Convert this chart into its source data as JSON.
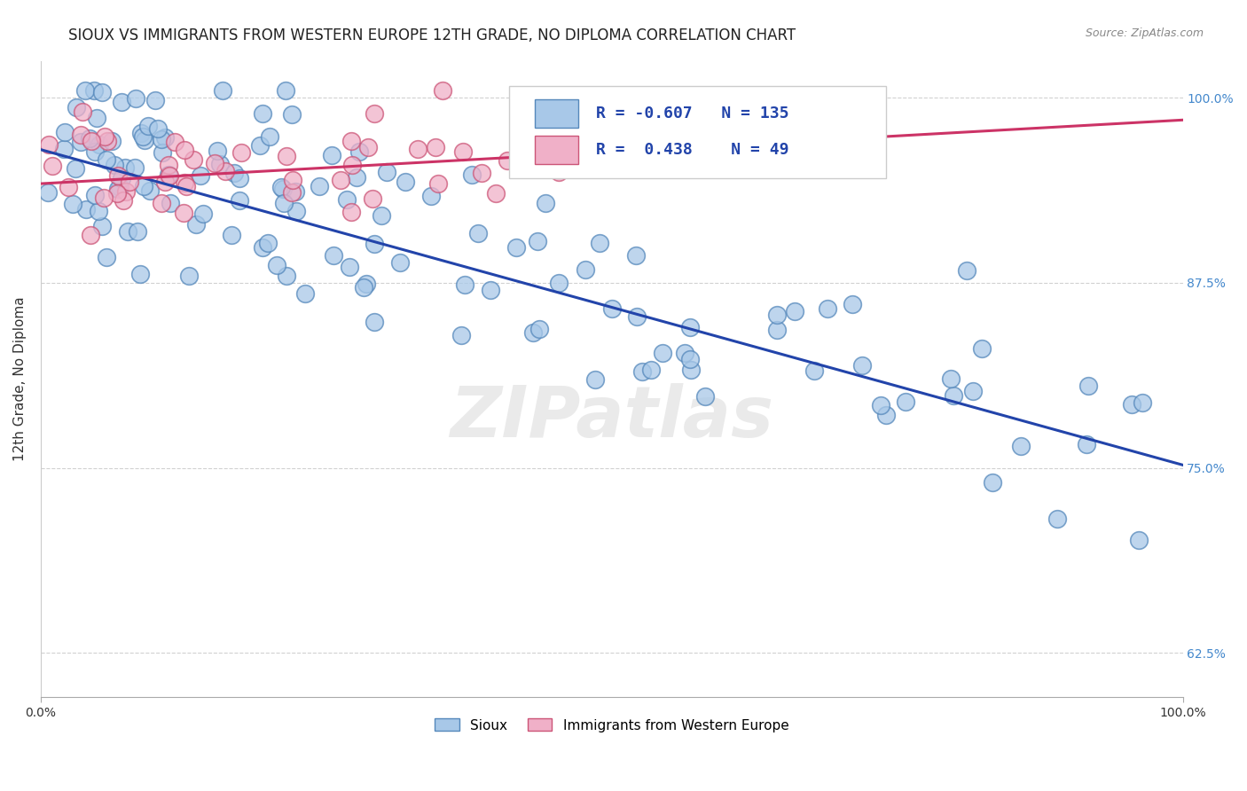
{
  "title": "SIOUX VS IMMIGRANTS FROM WESTERN EUROPE 12TH GRADE, NO DIPLOMA CORRELATION CHART",
  "source": "Source: ZipAtlas.com",
  "ylabel_label": "12th Grade, No Diploma",
  "watermark": "ZIPatlas",
  "legend_entries": [
    {
      "label": "Sioux",
      "color": "#a8c8e8",
      "edge_color": "#5588bb",
      "R": "-0.607",
      "N": "135",
      "line_color": "#2244aa"
    },
    {
      "label": "Immigrants from Western Europe",
      "color": "#f0b0c8",
      "edge_color": "#cc5577",
      "R": "0.438",
      "N": "49",
      "line_color": "#cc3366"
    }
  ],
  "background_color": "#ffffff",
  "grid_color": "#cccccc",
  "title_fontsize": 12,
  "xlim": [
    0.0,
    1.0
  ],
  "ylim": [
    0.595,
    1.025
  ],
  "yticks": [
    0.625,
    0.75,
    0.875,
    1.0
  ],
  "ytick_labels": [
    "62.5%",
    "75.0%",
    "87.5%",
    "100.0%"
  ],
  "xticks": [
    0.0,
    1.0
  ],
  "xtick_labels": [
    "0.0%",
    "100.0%"
  ],
  "sioux_trend_x0": 0.0,
  "sioux_trend_y0": 0.965,
  "sioux_trend_x1": 1.0,
  "sioux_trend_y1": 0.752,
  "immigrants_trend_x0": 0.0,
  "immigrants_trend_y0": 0.942,
  "immigrants_trend_x1": 1.0,
  "immigrants_trend_y1": 0.985
}
